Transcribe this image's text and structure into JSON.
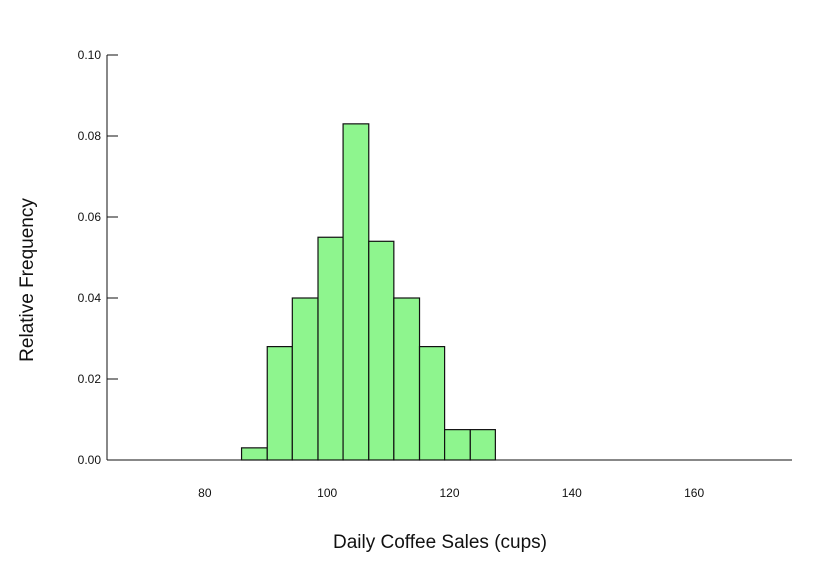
{
  "colors": {
    "bar_fill": "#8ef58e",
    "bar_edge": "#111111"
  },
  "chart_data": {
    "type": "bar",
    "style": "histogram",
    "xlabel": "Daily Coffee Sales (cups)",
    "ylabel": "Relative Frequency",
    "xlim": [
      64,
      176
    ],
    "ylim": [
      0,
      0.1
    ],
    "xticks": [
      80,
      100,
      120,
      140,
      160
    ],
    "yticks": [
      0.0,
      0.02,
      0.04,
      0.06,
      0.08,
      0.1
    ],
    "ytick_labels": [
      "0.00",
      "0.02",
      "0.04",
      "0.06",
      "0.08",
      "0.10"
    ],
    "grid": false,
    "bins": [
      {
        "x0": 86.0,
        "x1": 90.2,
        "value": 0.003
      },
      {
        "x0": 90.2,
        "x1": 94.3,
        "value": 0.028
      },
      {
        "x0": 94.3,
        "x1": 98.5,
        "value": 0.04
      },
      {
        "x0": 98.5,
        "x1": 102.6,
        "value": 0.055
      },
      {
        "x0": 102.6,
        "x1": 106.8,
        "value": 0.083
      },
      {
        "x0": 106.8,
        "x1": 110.9,
        "value": 0.054
      },
      {
        "x0": 110.9,
        "x1": 115.1,
        "value": 0.04
      },
      {
        "x0": 115.1,
        "x1": 119.2,
        "value": 0.028
      },
      {
        "x0": 119.2,
        "x1": 123.4,
        "value": 0.0075
      },
      {
        "x0": 123.4,
        "x1": 127.5,
        "value": 0.0075
      }
    ]
  }
}
